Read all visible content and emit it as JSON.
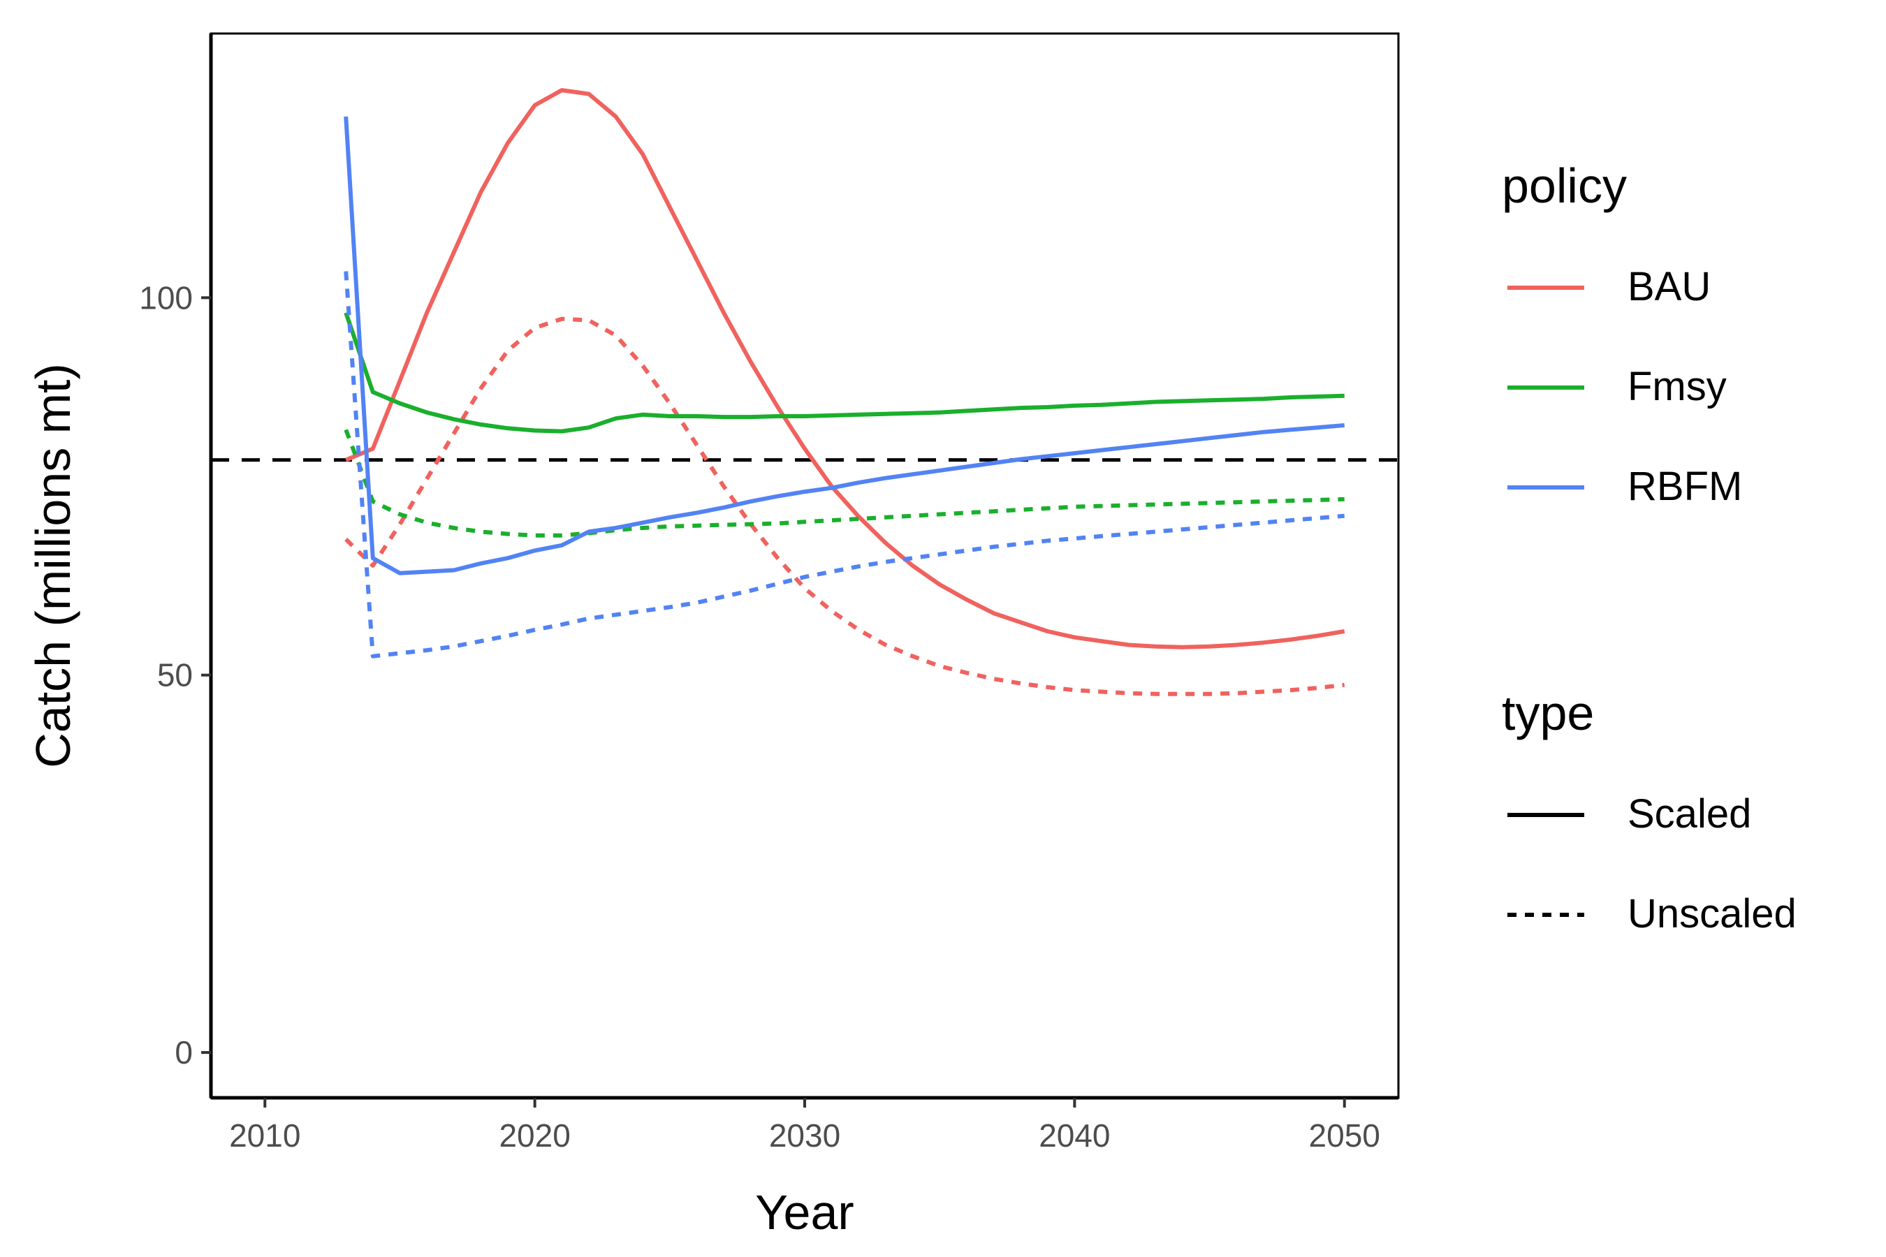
{
  "chart_data": {
    "type": "line",
    "xlabel": "Year",
    "ylabel": "Catch (millions mt)",
    "xlim": [
      2008,
      2052
    ],
    "ylim": [
      -6,
      135
    ],
    "x_ticks": [
      2010,
      2020,
      2030,
      2040,
      2050
    ],
    "y_ticks": [
      0,
      50,
      100
    ],
    "grid": false,
    "reference_line": {
      "y": 78.5,
      "style": "dashed",
      "color": "#000000"
    },
    "x": [
      2013,
      2014,
      2015,
      2016,
      2017,
      2018,
      2019,
      2020,
      2021,
      2022,
      2023,
      2024,
      2025,
      2026,
      2027,
      2028,
      2029,
      2030,
      2031,
      2032,
      2033,
      2034,
      2035,
      2036,
      2037,
      2038,
      2039,
      2040,
      2041,
      2042,
      2043,
      2044,
      2045,
      2046,
      2047,
      2048,
      2049,
      2050
    ],
    "series": [
      {
        "name": "BAU",
        "type": "Scaled",
        "color": "#F0625E",
        "dash": "solid",
        "values": [
          78.5,
          80,
          89,
          98,
          106,
          114,
          120.5,
          125.5,
          127.5,
          127,
          124,
          119,
          112,
          105,
          98,
          91.5,
          85.5,
          80,
          75,
          71,
          67.5,
          64.5,
          62,
          60,
          58.2,
          57,
          55.8,
          55,
          54.5,
          54,
          53.8,
          53.7,
          53.8,
          54,
          54.3,
          54.7,
          55.2,
          55.8
        ]
      },
      {
        "name": "BAU",
        "type": "Unscaled",
        "color": "#F0625E",
        "dash": "dotted",
        "values": [
          68,
          64.5,
          70,
          76,
          82,
          88,
          93,
          96,
          97.2,
          97,
          95,
          91,
          86,
          80.5,
          75,
          70,
          65.5,
          61.5,
          58.5,
          56,
          54,
          52.5,
          51.2,
          50.3,
          49.5,
          48.9,
          48.4,
          48,
          47.8,
          47.6,
          47.5,
          47.5,
          47.5,
          47.6,
          47.8,
          48,
          48.3,
          48.7
        ]
      },
      {
        "name": "Fmsy",
        "type": "Scaled",
        "color": "#1AAF2C",
        "dash": "solid",
        "values": [
          98,
          87.5,
          86,
          84.8,
          83.9,
          83.2,
          82.7,
          82.4,
          82.3,
          82.8,
          84,
          84.5,
          84.3,
          84.3,
          84.2,
          84.2,
          84.3,
          84.3,
          84.4,
          84.5,
          84.6,
          84.7,
          84.8,
          85,
          85.2,
          85.4,
          85.5,
          85.7,
          85.8,
          86,
          86.2,
          86.3,
          86.4,
          86.5,
          86.6,
          86.8,
          86.9,
          87
        ]
      },
      {
        "name": "Fmsy",
        "type": "Unscaled",
        "color": "#1AAF2C",
        "dash": "dotted",
        "values": [
          82.5,
          73,
          71.3,
          70.2,
          69.5,
          69,
          68.7,
          68.5,
          68.5,
          68.8,
          69.2,
          69.5,
          69.7,
          69.8,
          69.9,
          70,
          70.1,
          70.3,
          70.5,
          70.7,
          70.9,
          71.1,
          71.3,
          71.5,
          71.7,
          71.9,
          72.1,
          72.3,
          72.4,
          72.5,
          72.6,
          72.7,
          72.8,
          72.9,
          73,
          73.1,
          73.2,
          73.3
        ]
      },
      {
        "name": "RBFM",
        "type": "Scaled",
        "color": "#5283F4",
        "dash": "solid",
        "values": [
          124,
          65.5,
          63.5,
          63.7,
          63.9,
          64.8,
          65.5,
          66.5,
          67.2,
          69,
          69.5,
          70.2,
          70.9,
          71.5,
          72.2,
          73,
          73.7,
          74.3,
          74.8,
          75.5,
          76.1,
          76.6,
          77.1,
          77.6,
          78.1,
          78.6,
          79,
          79.4,
          79.8,
          80.2,
          80.6,
          81,
          81.4,
          81.8,
          82.2,
          82.5,
          82.8,
          83.1
        ]
      },
      {
        "name": "RBFM",
        "type": "Unscaled",
        "color": "#5283F4",
        "dash": "dotted",
        "values": [
          103.5,
          52.5,
          52.9,
          53.3,
          53.8,
          54.5,
          55.2,
          56,
          56.7,
          57.5,
          58,
          58.5,
          59,
          59.6,
          60.4,
          61.2,
          62.1,
          63,
          63.7,
          64.4,
          65,
          65.5,
          66,
          66.5,
          67,
          67.4,
          67.8,
          68.1,
          68.4,
          68.7,
          69,
          69.3,
          69.6,
          69.9,
          70.2,
          70.5,
          70.8,
          71.1
        ]
      }
    ],
    "legend": {
      "placement": "right",
      "groups": [
        {
          "title": "policy",
          "entries": [
            {
              "label": "BAU",
              "color": "#F0625E",
              "dash": "solid"
            },
            {
              "label": "Fmsy",
              "color": "#1AAF2C",
              "dash": "solid"
            },
            {
              "label": "RBFM",
              "color": "#5283F4",
              "dash": "solid"
            }
          ]
        },
        {
          "title": "type",
          "entries": [
            {
              "label": "Scaled",
              "color": "#000000",
              "dash": "solid"
            },
            {
              "label": "Unscaled",
              "color": "#000000",
              "dash": "dotted"
            }
          ]
        }
      ]
    }
  }
}
